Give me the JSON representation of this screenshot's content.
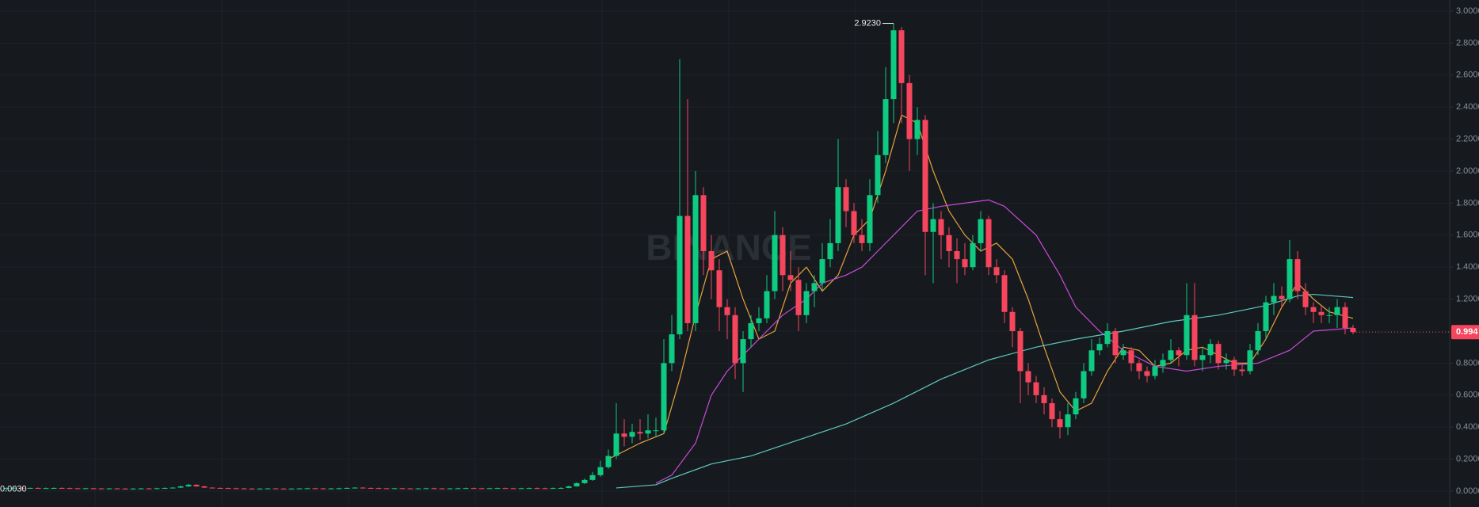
{
  "chart_data": {
    "type": "candlestick",
    "watermark": "BINANCE",
    "up_color": "#0ecb81",
    "down_color": "#f6465d",
    "ylim": [
      0,
      3
    ],
    "yticks": [
      {
        "value": 0,
        "label": "0.0000"
      },
      {
        "value": 0.2,
        "label": "0.2000"
      },
      {
        "value": 0.4,
        "label": "0.4000"
      },
      {
        "value": 0.6,
        "label": "0.6000"
      },
      {
        "value": 0.8,
        "label": "0.8000"
      },
      {
        "value": 1,
        "label": "1.0000"
      },
      {
        "value": 1.2,
        "label": "1.2000"
      },
      {
        "value": 1.4,
        "label": "1.4000"
      },
      {
        "value": 1.6,
        "label": "1.6000"
      },
      {
        "value": 1.8,
        "label": "1.8000"
      },
      {
        "value": 2,
        "label": "2.0000"
      },
      {
        "value": 2.2,
        "label": "2.2000"
      },
      {
        "value": 2.4,
        "label": "2.4000"
      },
      {
        "value": 2.6,
        "label": "2.6000"
      },
      {
        "value": 2.8,
        "label": "2.8000"
      },
      {
        "value": 3,
        "label": "3.0000"
      }
    ],
    "grid": true,
    "max_label": {
      "value": 2.923,
      "label": "2.9230"
    },
    "min_label": {
      "value": 0.003,
      "label": "0.0030"
    },
    "last_price": 0.994,
    "ohlc": [
      [
        0.019,
        0.023,
        0.003,
        0.02
      ],
      [
        0.02,
        0.024,
        0.017,
        0.021
      ],
      [
        0.021,
        0.024,
        0.016,
        0.019
      ],
      [
        0.019,
        0.023,
        0.016,
        0.02
      ],
      [
        0.02,
        0.023,
        0.015,
        0.018
      ],
      [
        0.018,
        0.022,
        0.015,
        0.019
      ],
      [
        0.019,
        0.023,
        0.016,
        0.02
      ],
      [
        0.02,
        0.023,
        0.016,
        0.019
      ],
      [
        0.019,
        0.022,
        0.015,
        0.018
      ],
      [
        0.018,
        0.021,
        0.014,
        0.017
      ],
      [
        0.017,
        0.021,
        0.014,
        0.018
      ],
      [
        0.018,
        0.021,
        0.014,
        0.017
      ],
      [
        0.017,
        0.02,
        0.013,
        0.016
      ],
      [
        0.016,
        0.02,
        0.013,
        0.017
      ],
      [
        0.017,
        0.02,
        0.013,
        0.016
      ],
      [
        0.016,
        0.019,
        0.012,
        0.015
      ],
      [
        0.015,
        0.019,
        0.012,
        0.016
      ],
      [
        0.016,
        0.02,
        0.013,
        0.017
      ],
      [
        0.017,
        0.02,
        0.013,
        0.016
      ],
      [
        0.016,
        0.021,
        0.013,
        0.018
      ],
      [
        0.018,
        0.023,
        0.015,
        0.02
      ],
      [
        0.02,
        0.025,
        0.017,
        0.022
      ],
      [
        0.022,
        0.034,
        0.019,
        0.03
      ],
      [
        0.03,
        0.046,
        0.027,
        0.04
      ],
      [
        0.04,
        0.043,
        0.027,
        0.03
      ],
      [
        0.03,
        0.033,
        0.019,
        0.022
      ],
      [
        0.022,
        0.025,
        0.017,
        0.02
      ],
      [
        0.02,
        0.023,
        0.016,
        0.019
      ],
      [
        0.019,
        0.022,
        0.015,
        0.018
      ],
      [
        0.018,
        0.021,
        0.014,
        0.017
      ],
      [
        0.017,
        0.02,
        0.013,
        0.016
      ],
      [
        0.016,
        0.019,
        0.012,
        0.015
      ],
      [
        0.015,
        0.019,
        0.012,
        0.016
      ],
      [
        0.016,
        0.02,
        0.013,
        0.017
      ],
      [
        0.017,
        0.02,
        0.013,
        0.016
      ],
      [
        0.016,
        0.019,
        0.012,
        0.015
      ],
      [
        0.015,
        0.019,
        0.012,
        0.016
      ],
      [
        0.016,
        0.02,
        0.013,
        0.017
      ],
      [
        0.017,
        0.021,
        0.014,
        0.018
      ],
      [
        0.018,
        0.021,
        0.014,
        0.017
      ],
      [
        0.017,
        0.02,
        0.013,
        0.016
      ],
      [
        0.016,
        0.02,
        0.013,
        0.017
      ],
      [
        0.017,
        0.021,
        0.014,
        0.018
      ],
      [
        0.018,
        0.023,
        0.015,
        0.02
      ],
      [
        0.02,
        0.025,
        0.017,
        0.022
      ],
      [
        0.022,
        0.025,
        0.017,
        0.02
      ],
      [
        0.02,
        0.023,
        0.016,
        0.019
      ],
      [
        0.019,
        0.022,
        0.015,
        0.018
      ],
      [
        0.018,
        0.021,
        0.014,
        0.017
      ],
      [
        0.017,
        0.021,
        0.014,
        0.018
      ],
      [
        0.018,
        0.021,
        0.014,
        0.017
      ],
      [
        0.017,
        0.02,
        0.013,
        0.016
      ],
      [
        0.016,
        0.02,
        0.013,
        0.017
      ],
      [
        0.017,
        0.021,
        0.014,
        0.018
      ],
      [
        0.018,
        0.021,
        0.014,
        0.017
      ],
      [
        0.017,
        0.02,
        0.013,
        0.016
      ],
      [
        0.016,
        0.02,
        0.013,
        0.017
      ],
      [
        0.017,
        0.021,
        0.014,
        0.018
      ],
      [
        0.018,
        0.022,
        0.015,
        0.019
      ],
      [
        0.019,
        0.022,
        0.015,
        0.018
      ],
      [
        0.018,
        0.021,
        0.014,
        0.017
      ],
      [
        0.017,
        0.021,
        0.014,
        0.018
      ],
      [
        0.018,
        0.022,
        0.015,
        0.019
      ],
      [
        0.019,
        0.022,
        0.015,
        0.018
      ],
      [
        0.018,
        0.021,
        0.014,
        0.017
      ],
      [
        0.017,
        0.021,
        0.014,
        0.018
      ],
      [
        0.018,
        0.022,
        0.015,
        0.019
      ],
      [
        0.019,
        0.022,
        0.015,
        0.018
      ],
      [
        0.018,
        0.021,
        0.014,
        0.017
      ],
      [
        0.017,
        0.022,
        0.014,
        0.019
      ],
      [
        0.019,
        0.024,
        0.016,
        0.02
      ],
      [
        0.02,
        0.034,
        0.018,
        0.03
      ],
      [
        0.03,
        0.055,
        0.028,
        0.05
      ],
      [
        0.05,
        0.08,
        0.045,
        0.07
      ],
      [
        0.07,
        0.12,
        0.065,
        0.1
      ],
      [
        0.1,
        0.19,
        0.09,
        0.15
      ],
      [
        0.15,
        0.26,
        0.14,
        0.22
      ],
      [
        0.22,
        0.55,
        0.2,
        0.36
      ],
      [
        0.36,
        0.45,
        0.28,
        0.34
      ],
      [
        0.34,
        0.42,
        0.3,
        0.37
      ],
      [
        0.37,
        0.45,
        0.32,
        0.36
      ],
      [
        0.36,
        0.48,
        0.33,
        0.38
      ],
      [
        0.38,
        0.46,
        0.34,
        0.38
      ],
      [
        0.38,
        0.95,
        0.36,
        0.8
      ],
      [
        0.8,
        1.1,
        0.75,
        0.98
      ],
      [
        0.98,
        2.7,
        0.95,
        1.72
      ],
      [
        1.72,
        2.45,
        1.0,
        1.05
      ],
      [
        1.05,
        2.0,
        1.0,
        1.85
      ],
      [
        1.85,
        1.9,
        1.35,
        1.5
      ],
      [
        1.5,
        1.6,
        1.2,
        1.38
      ],
      [
        1.38,
        1.45,
        1.0,
        1.15
      ],
      [
        1.15,
        1.2,
        0.95,
        1.1
      ],
      [
        1.1,
        1.15,
        0.7,
        0.8
      ],
      [
        0.8,
        1.0,
        0.62,
        0.95
      ],
      [
        0.95,
        1.1,
        0.9,
        1.05
      ],
      [
        1.05,
        1.15,
        1.0,
        1.08
      ],
      [
        1.08,
        1.35,
        1.05,
        1.25
      ],
      [
        1.25,
        1.75,
        1.2,
        1.6
      ],
      [
        1.6,
        1.65,
        1.25,
        1.35
      ],
      [
        1.35,
        1.5,
        1.25,
        1.32
      ],
      [
        1.32,
        1.4,
        1.0,
        1.1
      ],
      [
        1.1,
        1.3,
        1.05,
        1.25
      ],
      [
        1.25,
        1.35,
        1.15,
        1.3
      ],
      [
        1.3,
        1.55,
        1.25,
        1.45
      ],
      [
        1.45,
        1.7,
        1.4,
        1.55
      ],
      [
        1.55,
        2.2,
        1.5,
        1.9
      ],
      [
        1.9,
        1.95,
        1.65,
        1.75
      ],
      [
        1.75,
        1.8,
        1.55,
        1.6
      ],
      [
        1.6,
        1.7,
        1.5,
        1.55
      ],
      [
        1.55,
        1.95,
        1.5,
        1.85
      ],
      [
        1.85,
        2.25,
        1.8,
        2.1
      ],
      [
        2.1,
        2.65,
        2.05,
        2.45
      ],
      [
        2.45,
        2.923,
        2.3,
        2.88
      ],
      [
        2.88,
        2.9,
        2.3,
        2.55
      ],
      [
        2.55,
        2.6,
        2.0,
        2.2
      ],
      [
        2.2,
        2.4,
        2.1,
        2.32
      ],
      [
        2.32,
        2.35,
        1.35,
        1.62
      ],
      [
        1.62,
        1.8,
        1.3,
        1.7
      ],
      [
        1.7,
        1.75,
        1.45,
        1.6
      ],
      [
        1.6,
        1.65,
        1.4,
        1.5
      ],
      [
        1.5,
        1.58,
        1.3,
        1.45
      ],
      [
        1.45,
        1.55,
        1.35,
        1.4
      ],
      [
        1.4,
        1.6,
        1.38,
        1.55
      ],
      [
        1.55,
        1.75,
        1.5,
        1.7
      ],
      [
        1.7,
        1.72,
        1.35,
        1.4
      ],
      [
        1.4,
        1.45,
        1.3,
        1.35
      ],
      [
        1.35,
        1.38,
        1.05,
        1.12
      ],
      [
        1.12,
        1.15,
        0.9,
        1.0
      ],
      [
        1.0,
        1.02,
        0.55,
        0.75
      ],
      [
        0.75,
        0.8,
        0.6,
        0.68
      ],
      [
        0.68,
        0.72,
        0.55,
        0.6
      ],
      [
        0.6,
        0.65,
        0.48,
        0.55
      ],
      [
        0.55,
        0.58,
        0.4,
        0.45
      ],
      [
        0.45,
        0.5,
        0.33,
        0.4
      ],
      [
        0.4,
        0.55,
        0.35,
        0.48
      ],
      [
        0.48,
        0.62,
        0.45,
        0.58
      ],
      [
        0.58,
        0.8,
        0.55,
        0.75
      ],
      [
        0.75,
        0.95,
        0.72,
        0.88
      ],
      [
        0.88,
        0.96,
        0.85,
        0.92
      ],
      [
        0.92,
        1.05,
        0.9,
        1.0
      ],
      [
        1.0,
        1.02,
        0.8,
        0.85
      ],
      [
        0.85,
        0.92,
        0.82,
        0.88
      ],
      [
        0.88,
        0.9,
        0.75,
        0.8
      ],
      [
        0.8,
        0.82,
        0.7,
        0.75
      ],
      [
        0.75,
        0.78,
        0.68,
        0.72
      ],
      [
        0.72,
        0.82,
        0.7,
        0.78
      ],
      [
        0.78,
        0.86,
        0.74,
        0.82
      ],
      [
        0.82,
        0.95,
        0.8,
        0.88
      ],
      [
        0.88,
        0.9,
        0.78,
        0.85
      ],
      [
        0.85,
        1.3,
        0.82,
        1.1
      ],
      [
        1.1,
        1.3,
        0.78,
        0.82
      ],
      [
        0.82,
        0.9,
        0.75,
        0.85
      ],
      [
        0.85,
        0.95,
        0.8,
        0.92
      ],
      [
        0.92,
        0.94,
        0.76,
        0.8
      ],
      [
        0.8,
        0.86,
        0.76,
        0.82
      ],
      [
        0.82,
        0.84,
        0.72,
        0.76
      ],
      [
        0.76,
        0.8,
        0.72,
        0.75
      ],
      [
        0.75,
        0.92,
        0.73,
        0.88
      ],
      [
        0.88,
        1.05,
        0.85,
        1.0
      ],
      [
        1.0,
        1.22,
        0.95,
        1.18
      ],
      [
        1.18,
        1.3,
        1.1,
        1.22
      ],
      [
        1.22,
        1.28,
        1.15,
        1.2
      ],
      [
        1.2,
        1.57,
        1.18,
        1.45
      ],
      [
        1.45,
        1.5,
        1.2,
        1.25
      ],
      [
        1.25,
        1.3,
        1.1,
        1.15
      ],
      [
        1.15,
        1.18,
        1.05,
        1.12
      ],
      [
        1.12,
        1.16,
        1.05,
        1.1
      ],
      [
        1.1,
        1.15,
        1.05,
        1.1
      ],
      [
        1.1,
        1.2,
        1.02,
        1.15
      ],
      [
        1.15,
        1.18,
        0.98,
        1.02
      ],
      [
        1.02,
        1.04,
        0.98,
        0.994
      ]
    ],
    "lines": [
      {
        "color": "#e8a23c",
        "x": [
          76,
          80,
          83,
          85,
          87,
          89,
          91,
          93,
          95,
          97,
          99,
          101,
          103,
          105,
          107,
          109,
          111,
          113,
          115,
          117,
          119,
          121,
          123,
          125,
          127,
          129,
          131,
          133,
          135,
          137,
          139,
          141,
          143,
          145,
          147,
          149,
          151,
          153,
          155,
          157,
          159,
          161,
          163,
          165,
          167,
          170
        ],
        "values": [
          0.2,
          0.3,
          0.36,
          0.7,
          1.1,
          1.45,
          1.5,
          1.2,
          0.95,
          1.0,
          1.3,
          1.4,
          1.25,
          1.35,
          1.6,
          1.7,
          2.0,
          2.35,
          2.3,
          2.0,
          1.75,
          1.6,
          1.5,
          1.55,
          1.45,
          1.2,
          0.9,
          0.62,
          0.5,
          0.55,
          0.75,
          0.9,
          0.88,
          0.78,
          0.8,
          0.88,
          0.9,
          0.85,
          0.8,
          0.8,
          0.95,
          1.15,
          1.3,
          1.2,
          1.12,
          1.08
        ]
      },
      {
        "color": "#c84bd8",
        "x": [
          82,
          84,
          87,
          89,
          91,
          94,
          96,
          98,
          101,
          103,
          106,
          108,
          110,
          113,
          115,
          118,
          121,
          124,
          126,
          130,
          133,
          135,
          138,
          141,
          145,
          149,
          153,
          158,
          162,
          165,
          170
        ],
        "values": [
          0.05,
          0.1,
          0.3,
          0.6,
          0.75,
          0.9,
          1.0,
          1.1,
          1.2,
          1.3,
          1.35,
          1.4,
          1.5,
          1.65,
          1.75,
          1.78,
          1.8,
          1.82,
          1.78,
          1.6,
          1.35,
          1.15,
          1.0,
          0.88,
          0.78,
          0.75,
          0.78,
          0.8,
          0.88,
          1.0,
          1.02
        ]
      },
      {
        "color": "#5ec8c0",
        "x": [
          77,
          82,
          84,
          89,
          94,
          100,
          106,
          112,
          118,
          124,
          130,
          135,
          141,
          147,
          153,
          159,
          163,
          165,
          170
        ],
        "values": [
          0.02,
          0.04,
          0.08,
          0.17,
          0.22,
          0.32,
          0.42,
          0.55,
          0.7,
          0.82,
          0.9,
          0.95,
          1.0,
          1.06,
          1.1,
          1.16,
          1.22,
          1.23,
          1.21
        ]
      }
    ]
  }
}
